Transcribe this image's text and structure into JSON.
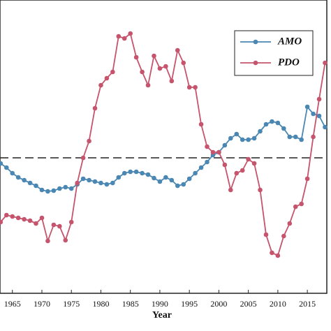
{
  "chart_data": {
    "type": "line",
    "x_label": "Year",
    "x": [
      1963,
      1964,
      1965,
      1966,
      1967,
      1968,
      1969,
      1970,
      1971,
      1972,
      1973,
      1974,
      1975,
      1976,
      1977,
      1978,
      1979,
      1980,
      1981,
      1982,
      1983,
      1984,
      1985,
      1986,
      1987,
      1988,
      1989,
      1990,
      1991,
      1992,
      1993,
      1994,
      1995,
      1996,
      1997,
      1998,
      1999,
      2000,
      2001,
      2002,
      2003,
      2004,
      2005,
      2006,
      2007,
      2008,
      2009,
      2010,
      2011,
      2012,
      2013,
      2014,
      2015,
      2016,
      2017,
      2018
    ],
    "series": [
      {
        "name": "AMO",
        "color": "#4a87b3",
        "values": [
          -0.08,
          -0.14,
          -0.22,
          -0.28,
          -0.32,
          -0.36,
          -0.4,
          -0.46,
          -0.48,
          -0.47,
          -0.44,
          -0.42,
          -0.44,
          -0.38,
          -0.3,
          -0.32,
          -0.34,
          -0.36,
          -0.38,
          -0.36,
          -0.28,
          -0.22,
          -0.2,
          -0.2,
          -0.22,
          -0.24,
          -0.29,
          -0.34,
          -0.28,
          -0.32,
          -0.4,
          -0.38,
          -0.3,
          -0.22,
          -0.14,
          -0.06,
          0.04,
          0.08,
          0.18,
          0.28,
          0.34,
          0.26,
          0.26,
          0.28,
          0.38,
          0.48,
          0.52,
          0.5,
          0.42,
          0.3,
          0.3,
          0.26,
          0.73,
          0.63,
          0.6,
          0.44
        ]
      },
      {
        "name": "PDO",
        "color": "#c5546c",
        "values": [
          -0.92,
          -0.82,
          -0.84,
          -0.86,
          -0.88,
          -0.9,
          -0.94,
          -0.86,
          -1.19,
          -0.96,
          -0.98,
          -1.18,
          -0.92,
          -0.36,
          0,
          0.24,
          0.71,
          1.04,
          1.14,
          1.23,
          1.74,
          1.71,
          1.78,
          1.44,
          1.23,
          1.04,
          1.46,
          1.28,
          1.31,
          1.1,
          1.54,
          1.36,
          1.01,
          1.01,
          0.48,
          0.16,
          0.08,
          0.08,
          -0.1,
          -0.46,
          -0.22,
          -0.18,
          -0.02,
          -0.08,
          -0.46,
          -1.1,
          -1.36,
          -1.4,
          -1.12,
          -0.94,
          -0.7,
          -0.66,
          -0.3,
          0.3,
          0.84,
          1.36
        ]
      }
    ],
    "xlim": [
      1962.9,
      2018.3
    ],
    "xticks": [
      1965,
      1970,
      1975,
      1980,
      1985,
      1990,
      1995,
      2000,
      2005,
      2010,
      2015
    ],
    "ylim": [
      -1.94,
      2.26
    ],
    "reference_line": 0,
    "legend": "upper right"
  }
}
